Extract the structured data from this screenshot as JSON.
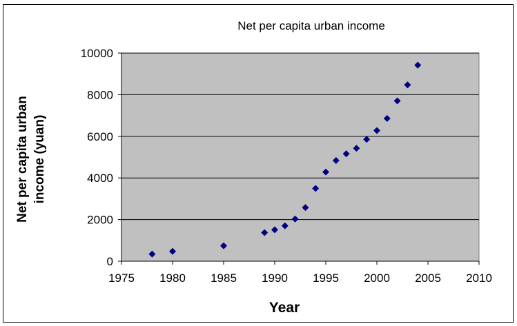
{
  "chart_data": {
    "type": "scatter",
    "title": "Net per capita urban income",
    "xlabel": "Year",
    "ylabel": [
      "Net per capita urban",
      "income (yuan)"
    ],
    "xlim": [
      1975,
      2010
    ],
    "ylim": [
      0,
      10000
    ],
    "xticks": [
      1975,
      1980,
      1985,
      1990,
      1995,
      2000,
      2005,
      2010
    ],
    "yticks": [
      0,
      2000,
      4000,
      6000,
      8000,
      10000
    ],
    "grid": true,
    "legend": "none",
    "colors": {
      "plot_bg": "#c0c0c0",
      "marker": "#000080",
      "grid": "#000000"
    },
    "x": [
      1978,
      1980,
      1985,
      1989,
      1990,
      1991,
      1992,
      1993,
      1994,
      1995,
      1996,
      1997,
      1998,
      1999,
      2000,
      2001,
      2002,
      2003,
      2004
    ],
    "y": [
      343,
      478,
      739,
      1374,
      1510,
      1701,
      2027,
      2577,
      3496,
      4283,
      4839,
      5160,
      5425,
      5854,
      6280,
      6860,
      7703,
      8472,
      9422
    ]
  }
}
